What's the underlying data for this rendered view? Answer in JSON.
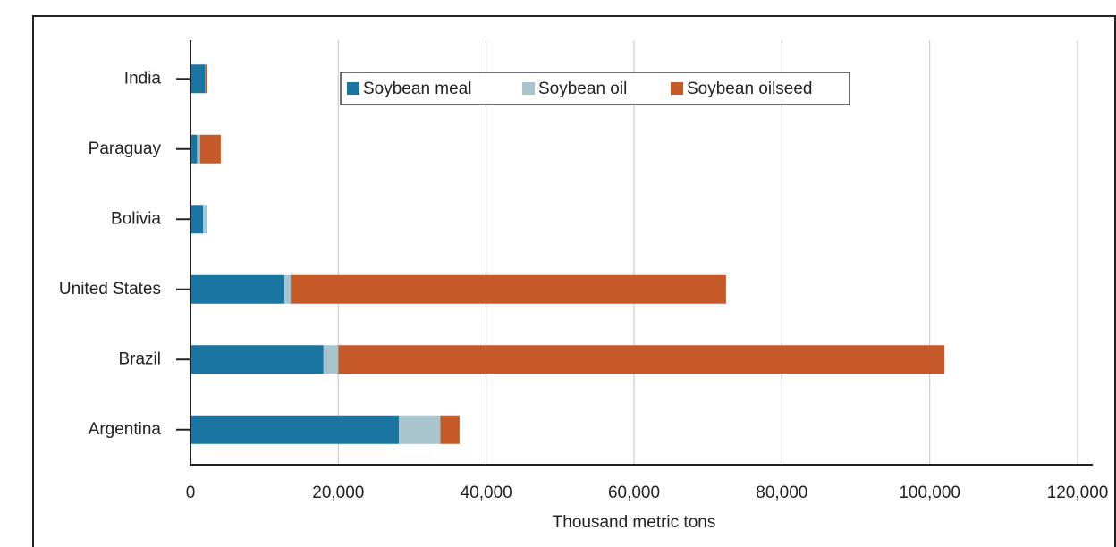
{
  "chart_data": {
    "type": "stacked-bar-horizontal",
    "categories": [
      "India",
      "Paraguay",
      "Bolivia",
      "United States",
      "Brazil",
      "Argentina"
    ],
    "series": [
      {
        "name": "Soybean meal",
        "color": "#1a75a1",
        "values": [
          2000,
          900,
          1700,
          12700,
          18000,
          28200
        ]
      },
      {
        "name": "Soybean oil",
        "color": "#a8c4cc",
        "values": [
          50,
          400,
          600,
          850,
          2000,
          5600
        ]
      },
      {
        "name": "Soybean oilseed",
        "color": "#c55a28",
        "values": [
          250,
          2800,
          0,
          58900,
          82000,
          2600
        ]
      }
    ],
    "x_label": "Thousand metric tons",
    "xlim": [
      0,
      120000
    ],
    "xticks": [
      0,
      {
        "value": 20000,
        "label": "20,000"
      },
      {
        "value": 40000,
        "label": "40,000"
      },
      {
        "value": 60000,
        "label": "60,000"
      },
      {
        "value": 80000,
        "label": "80,000"
      },
      {
        "value": 100000,
        "label": "100,000"
      },
      {
        "value": 120000,
        "label": "120,000"
      }
    ],
    "grid": true
  }
}
